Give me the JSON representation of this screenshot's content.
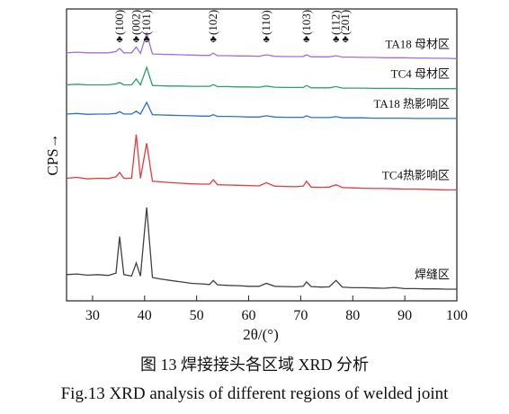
{
  "chart_data": {
    "type": "line",
    "x_label": "2θ/(°)",
    "y_label": "CPS→",
    "xlim": [
      25,
      100
    ],
    "xticks": [
      30,
      40,
      50,
      60,
      70,
      80,
      90,
      100
    ],
    "ylim": [
      0,
      100
    ],
    "x": [
      25,
      27,
      29,
      31,
      33,
      34.5,
      35.2,
      36,
      37.5,
      38.4,
      39.2,
      40.4,
      41.5,
      43,
      45,
      47,
      49,
      51,
      52.5,
      53.2,
      54,
      56,
      58,
      60,
      62,
      63.4,
      65,
      67,
      69,
      70.5,
      71.1,
      72,
      74,
      75.5,
      76.8,
      78,
      80,
      82,
      84,
      86,
      88,
      90,
      92,
      94,
      96,
      98,
      100
    ],
    "series": [
      {
        "name": "焊缝区",
        "color": "#404040",
        "values": [
          9,
          9.2,
          8.8,
          9,
          8.7,
          9.5,
          22,
          9,
          8.5,
          13,
          8.5,
          32,
          8,
          7.5,
          7,
          6.5,
          6,
          5.8,
          5.6,
          7,
          5.5,
          5.3,
          5.2,
          5,
          5,
          6,
          5,
          4.9,
          4.8,
          5,
          6.5,
          4.9,
          4.7,
          4.8,
          7,
          4.7,
          4.5,
          4.5,
          4.4,
          4.3,
          4.6,
          4.2,
          4.2,
          4.1,
          4.1,
          4,
          4
        ]
      },
      {
        "name": "TC4热影响区",
        "color": "#e8383d",
        "values": [
          42,
          42.3,
          41.8,
          42,
          41.9,
          42.5,
          44,
          42,
          42,
          57,
          42,
          54,
          41,
          40.8,
          40.5,
          40.3,
          40.1,
          40,
          40,
          41.5,
          39.8,
          39.7,
          39.6,
          39.5,
          39.4,
          40.5,
          39.3,
          39.2,
          39.1,
          39.3,
          41,
          39,
          38.9,
          39,
          39.8,
          38.8,
          38.7,
          38.6,
          38.5,
          38.5,
          38.4,
          38.3,
          38.3,
          38.2,
          38.1,
          38,
          38
        ]
      },
      {
        "name": "TA18 热影响区",
        "color": "#2a6fd6",
        "values": [
          64,
          64.2,
          63.9,
          64,
          64,
          64.2,
          64.8,
          64,
          64,
          65,
          64,
          68,
          63.8,
          63.7,
          63.6,
          63.5,
          63.4,
          63.3,
          63.3,
          63.8,
          63.2,
          63.2,
          63.1,
          63,
          63,
          63.4,
          63,
          62.9,
          62.9,
          62.9,
          63.4,
          62.8,
          62.8,
          62.8,
          63.1,
          62.7,
          62.7,
          62.7,
          62.6,
          62.6,
          62.6,
          62.6,
          62.5,
          62.5,
          62.5,
          62.5,
          62.5
        ]
      },
      {
        "name": "TC4 母材区",
        "color": "#2aa06a",
        "values": [
          74,
          74.2,
          74,
          74,
          74,
          74.3,
          74.8,
          74,
          74,
          76,
          74,
          80,
          73.8,
          73.7,
          73.6,
          73.6,
          73.5,
          73.5,
          73.5,
          74.1,
          73.4,
          73.4,
          73.3,
          73.3,
          73.2,
          73.6,
          73.2,
          73.1,
          73.1,
          73.1,
          73.8,
          73,
          73,
          73,
          73.4,
          72.9,
          72.9,
          72.9,
          72.8,
          72.8,
          72.8,
          72.8,
          72.7,
          72.7,
          72.7,
          72.7,
          72.7
        ]
      },
      {
        "name": "TA18 母材区",
        "color": "#a070d8",
        "values": [
          85,
          85.2,
          85,
          85,
          85,
          85.4,
          86.5,
          85,
          85,
          87,
          84.8,
          91.7,
          84.6,
          84.5,
          84.4,
          84.3,
          84.2,
          84.1,
          84.1,
          84.9,
          84,
          84,
          83.9,
          83.9,
          83.8,
          84.3,
          83.8,
          83.7,
          83.7,
          83.7,
          84.3,
          83.6,
          83.6,
          83.6,
          84,
          83.5,
          83.5,
          83.4,
          83.4,
          83.3,
          83.3,
          83.3,
          83.2,
          83.2,
          83.1,
          83.1,
          83
        ]
      }
    ],
    "peak_marker": "♣",
    "annotations": [
      {
        "text": "(100)",
        "x": 35.2
      },
      {
        "text": "(002)",
        "x": 38.4
      },
      {
        "text": "(101)",
        "x": 40.4
      },
      {
        "text": "(102)",
        "x": 53.2
      },
      {
        "text": "(110)",
        "x": 63.4
      },
      {
        "text": "(103)",
        "x": 71.1
      },
      {
        "text": "(112)",
        "x": 76.8
      },
      {
        "text": "(201)",
        "x": 78.6
      }
    ],
    "captions": [
      "图 13  焊接接头各区域 XRD 分析",
      "Fig.13  XRD analysis of different regions of welded joint"
    ]
  }
}
